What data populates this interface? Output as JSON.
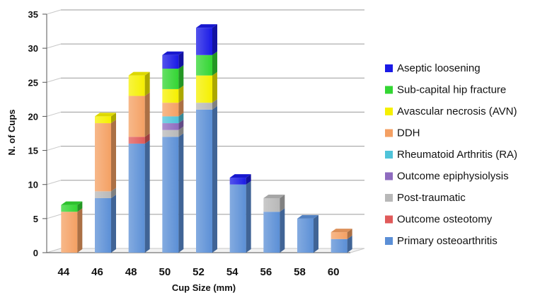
{
  "chart_data": {
    "type": "bar",
    "stacked": true,
    "style": "3d",
    "title": "",
    "xlabel": "Cup Size (mm)",
    "ylabel": "N. of Cups",
    "ylim": [
      0,
      35
    ],
    "yticks": [
      0,
      5,
      10,
      15,
      20,
      25,
      30,
      35
    ],
    "grid": true,
    "legend_position": "right",
    "categories": [
      "44",
      "46",
      "48",
      "50",
      "52",
      "54",
      "56",
      "58",
      "60"
    ],
    "series": [
      {
        "name": "Primary osteoarthritis",
        "color": "#5b8fd6",
        "values": [
          0,
          8,
          16,
          17,
          21,
          10,
          6,
          5,
          2
        ]
      },
      {
        "name": "Outcome osteotomy",
        "color": "#e05a5a",
        "values": [
          0,
          0,
          1,
          0,
          0,
          0,
          0,
          0,
          0
        ]
      },
      {
        "name": "Post-traumatic",
        "color": "#b8b8b8",
        "values": [
          0,
          1,
          0,
          1,
          1,
          0,
          2,
          0,
          0
        ]
      },
      {
        "name": "Outcome epiphysiolysis",
        "color": "#8e6bbf",
        "values": [
          0,
          0,
          0,
          1,
          0,
          0,
          0,
          0,
          0
        ]
      },
      {
        "name": "Rheumatoid Arthritis (RA)",
        "color": "#4fc3d9",
        "values": [
          0,
          0,
          0,
          1,
          0,
          0,
          0,
          0,
          0
        ]
      },
      {
        "name": "DDH",
        "color": "#f4a063",
        "values": [
          6,
          10,
          6,
          2,
          0,
          0,
          0,
          0,
          1
        ]
      },
      {
        "name": "Avascular necrosis (AVN)",
        "color": "#f5f000",
        "values": [
          0,
          1,
          3,
          2,
          4,
          0,
          0,
          0,
          0
        ]
      },
      {
        "name": "Sub-capital hip fracture",
        "color": "#33d633",
        "values": [
          1,
          0,
          0,
          3,
          3,
          0,
          0,
          0,
          0
        ]
      },
      {
        "name": "Aseptic loosening",
        "color": "#1a1ae6",
        "values": [
          0,
          0,
          0,
          2,
          4,
          1,
          0,
          0,
          0
        ]
      }
    ]
  }
}
